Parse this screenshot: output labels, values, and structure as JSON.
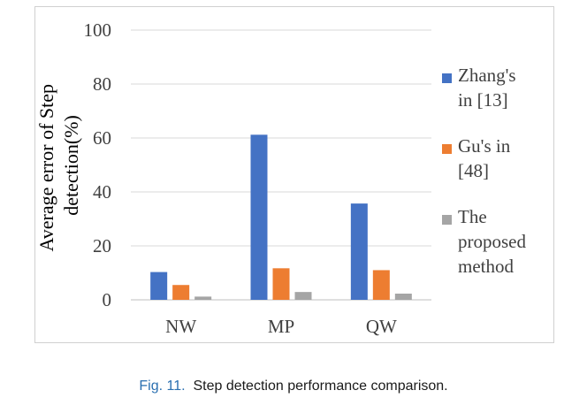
{
  "chart_data": {
    "type": "bar",
    "categories": [
      "NW",
      "MP",
      "QW"
    ],
    "series": [
      {
        "name": "Zhang's in [13]",
        "values": [
          10.3,
          61.2,
          35.7
        ],
        "color": "#4472c4"
      },
      {
        "name": "Gu's in [48]",
        "values": [
          5.5,
          11.7,
          11.0
        ],
        "color": "#ed7d31"
      },
      {
        "name": "The proposed method",
        "values": [
          1.2,
          2.9,
          2.3
        ],
        "color": "#a5a5a5"
      }
    ],
    "ylabel": "Average error of Step detection(%)",
    "ylabel_lines": [
      "Average error of Step",
      "detection(%)"
    ],
    "ylim": [
      0,
      100
    ],
    "yticks": [
      0,
      20,
      40,
      60,
      80,
      100
    ],
    "ytick_labels": [
      "0",
      "20",
      "40",
      "60",
      "80",
      "100"
    ],
    "legend_position": "right",
    "legend_lines": [
      [
        "Zhang's",
        "in [13]"
      ],
      [
        "Gu's in",
        "[48]"
      ],
      [
        "The",
        "proposed",
        "method"
      ]
    ],
    "grid": true
  },
  "caption": {
    "number": "Fig. 11.",
    "text": "Step detection performance comparison."
  }
}
